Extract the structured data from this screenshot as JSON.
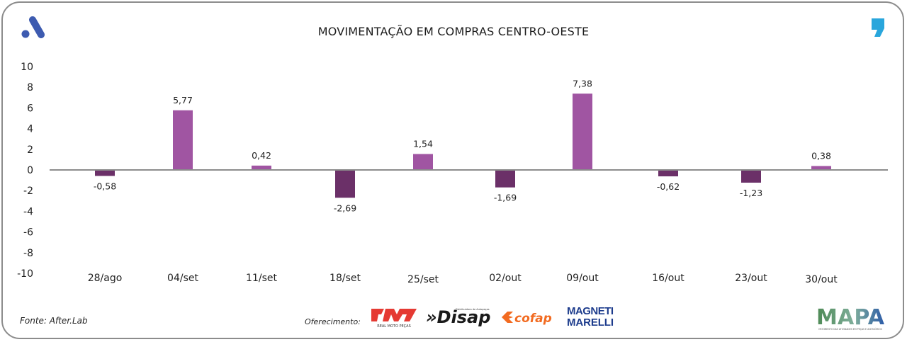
{
  "header": {
    "title": "MOVIMENTAÇÃO EM COMPRAS CENTRO-OESTE"
  },
  "footer": {
    "source": "Fonte: After.Lab",
    "sponsor_label": "Oferecimento:",
    "sponsors": [
      {
        "name": "RMP",
        "subtitle": "REAL MOTO PEÇAS"
      },
      {
        "name": "Disape",
        "subtitle": "Distribuidora de Autopeças"
      },
      {
        "name": "cofap"
      },
      {
        "name": "MAGNETI MARELLI",
        "line1": "MAGNETI",
        "line2": "MARELLI"
      }
    ],
    "brand": {
      "name": "MAPA",
      "subtitle": "MOVIMENTO DAS ATIVIDADES EM PEÇAS E ACESSÓRIOS"
    }
  },
  "colors": {
    "positive": "#a055a2",
    "negative": "#6b3068",
    "axis": "#8c8c8c",
    "logo_a": "#3d5bb0",
    "logo_quote": "#29a6dc",
    "cofap": "#f26b21",
    "rmp": "#e53a33",
    "magneti": "#1c3b8c"
  },
  "chart_data": {
    "type": "bar",
    "title": "MOVIMENTAÇÃO EM COMPRAS CENTRO-OESTE",
    "xlabel": "",
    "ylabel": "",
    "categories": [
      "28/ago",
      "04/set",
      "11/set",
      "18/set",
      "25/set",
      "02/out",
      "09/out",
      "16/out",
      "23/out",
      "30/out"
    ],
    "values": [
      -0.58,
      5.77,
      0.42,
      -2.69,
      1.54,
      -1.69,
      7.38,
      -0.62,
      -1.23,
      0.38
    ],
    "data_labels": [
      "-0,58",
      "5,77",
      "0,42",
      "-2,69",
      "1,54",
      "-1,69",
      "7,38",
      "-0,62",
      "-1,23",
      "0,38"
    ],
    "ylim": [
      -10,
      10
    ],
    "yticks": [
      10,
      8,
      6,
      4,
      2,
      0,
      -2,
      -4,
      -6,
      -8,
      -10
    ],
    "grid": false,
    "legend": "none"
  }
}
